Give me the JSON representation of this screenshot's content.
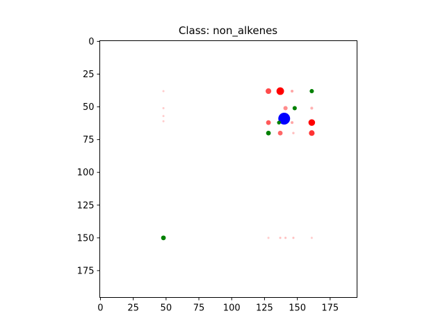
{
  "chart_data": {
    "type": "scatter",
    "title": "Class: non_alkenes",
    "xlabel": "",
    "ylabel": "",
    "xlim": [
      -0.5,
      195.5
    ],
    "ylim": [
      195.5,
      -0.5
    ],
    "y_inverted": true,
    "grid": false,
    "legend": "none",
    "x_ticks": [
      0,
      25,
      50,
      75,
      100,
      125,
      150,
      175
    ],
    "y_ticks": [
      0,
      25,
      50,
      75,
      100,
      125,
      150,
      175
    ],
    "series": [
      {
        "color": "#ff0000",
        "points": [
          {
            "x": 137,
            "y": 38,
            "size": 3.2,
            "alpha": 1.0
          },
          {
            "x": 128,
            "y": 38,
            "size": 2.4,
            "alpha": 0.7
          },
          {
            "x": 161,
            "y": 62,
            "size": 2.8,
            "alpha": 1.0
          },
          {
            "x": 161,
            "y": 70,
            "size": 2.4,
            "alpha": 0.8
          },
          {
            "x": 128,
            "y": 62,
            "size": 2.0,
            "alpha": 0.65
          },
          {
            "x": 137,
            "y": 70,
            "size": 2.0,
            "alpha": 0.6
          },
          {
            "x": 141,
            "y": 51,
            "size": 1.8,
            "alpha": 0.45
          },
          {
            "x": 146,
            "y": 38,
            "size": 1.2,
            "alpha": 0.35
          },
          {
            "x": 161,
            "y": 51,
            "size": 1.2,
            "alpha": 0.3
          },
          {
            "x": 146,
            "y": 62,
            "size": 1.2,
            "alpha": 0.35
          },
          {
            "x": 147,
            "y": 70,
            "size": 1.0,
            "alpha": 0.25
          },
          {
            "x": 48,
            "y": 38,
            "size": 0.9,
            "alpha": 0.2
          },
          {
            "x": 48,
            "y": 51,
            "size": 0.9,
            "alpha": 0.2
          },
          {
            "x": 48,
            "y": 57,
            "size": 0.9,
            "alpha": 0.2
          },
          {
            "x": 48,
            "y": 61,
            "size": 0.9,
            "alpha": 0.2
          },
          {
            "x": 128,
            "y": 150,
            "size": 0.9,
            "alpha": 0.2
          },
          {
            "x": 137,
            "y": 150,
            "size": 0.9,
            "alpha": 0.25
          },
          {
            "x": 141,
            "y": 150,
            "size": 0.9,
            "alpha": 0.25
          },
          {
            "x": 147,
            "y": 150,
            "size": 0.9,
            "alpha": 0.25
          },
          {
            "x": 161,
            "y": 150,
            "size": 0.9,
            "alpha": 0.2
          }
        ]
      },
      {
        "color": "#0000ff",
        "points": [
          {
            "x": 140,
            "y": 59,
            "size": 5.0,
            "alpha": 1.0
          }
        ]
      },
      {
        "color": "#008000",
        "points": [
          {
            "x": 48,
            "y": 150,
            "size": 2.0,
            "alpha": 1.0
          },
          {
            "x": 128,
            "y": 70,
            "size": 2.0,
            "alpha": 1.0
          },
          {
            "x": 161,
            "y": 38,
            "size": 1.8,
            "alpha": 1.0
          },
          {
            "x": 148,
            "y": 51,
            "size": 1.8,
            "alpha": 1.0
          },
          {
            "x": 136,
            "y": 62,
            "size": 1.6,
            "alpha": 1.0
          }
        ]
      }
    ]
  }
}
